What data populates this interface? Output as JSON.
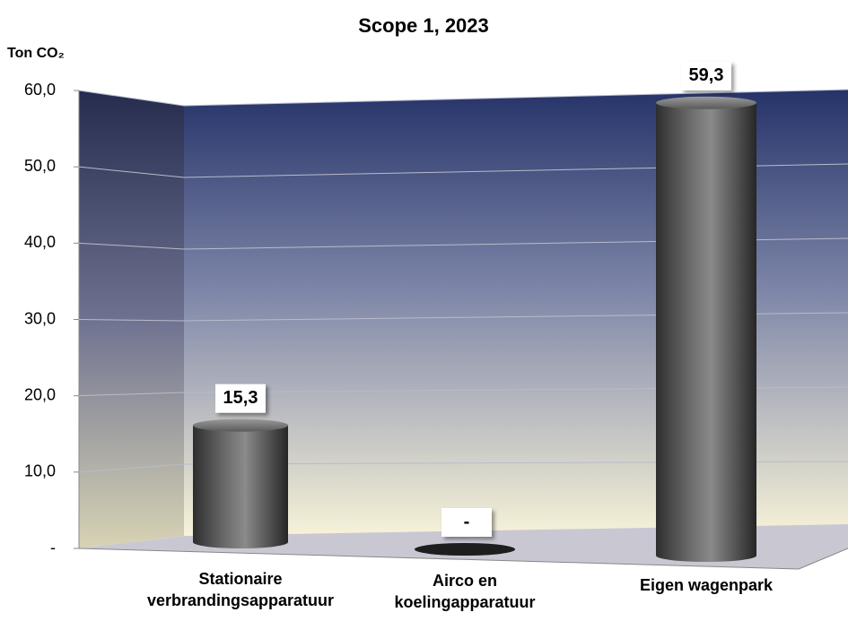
{
  "chart_data": {
    "type": "bar",
    "title": "Scope 1, 2023",
    "y_label": "Ton CO₂",
    "categories": [
      "Stationaire verbrandingsapparatuur",
      "Airco en koelingapparatuur",
      "Eigen wagenpark"
    ],
    "values": [
      15.3,
      0,
      59.3
    ],
    "value_labels": [
      "15,3",
      "-",
      "59,3"
    ],
    "color": "#4a4a4a",
    "ylim": [
      0,
      60
    ],
    "yticks": [
      {
        "value": 0,
        "label": "-"
      },
      {
        "value": 10,
        "label": "10,0"
      },
      {
        "value": 20,
        "label": "20,0"
      },
      {
        "value": 30,
        "label": "30,0"
      },
      {
        "value": 40,
        "label": "40,0"
      },
      {
        "value": 50,
        "label": "50,0"
      },
      {
        "value": 60,
        "label": "60,0"
      }
    ],
    "grid": true
  }
}
